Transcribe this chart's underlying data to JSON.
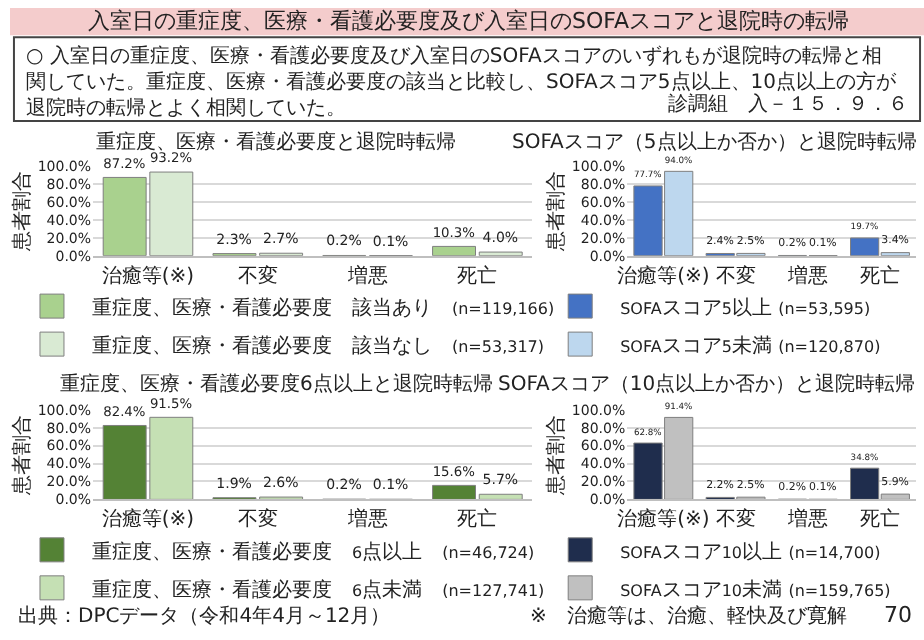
{
  "chart_data": [
    {
      "type": "bar",
      "title": "重症度、医療・看護必要度と退院時転帰",
      "ylabel": "患者割合",
      "categories": [
        "治癒等(※)",
        "不変",
        "増悪",
        "死亡"
      ],
      "ylim": [
        0,
        100
      ],
      "yticks": [
        {
          "value": 0,
          "label": "0.0%"
        },
        {
          "value": 20,
          "label": "20.0%"
        },
        {
          "value": 40,
          "label": "40.0%"
        },
        {
          "value": 60,
          "label": "60.0%"
        },
        {
          "value": 80,
          "label": "80.0%"
        },
        {
          "value": 100,
          "label": "100.0%"
        }
      ],
      "grid": "y",
      "legend": "bottom",
      "series": [
        {
          "name": "重症度、医療・看護必要度　該当あり　(n=119,166)",
          "color": "#a9d18e",
          "values": [
            87.2,
            2.3,
            0.2,
            10.3
          ],
          "value_labels": [
            "87.2%",
            "2.3%",
            "0.2%",
            "10.3%"
          ]
        },
        {
          "name": "重症度、医療・看護必要度　該当なし　(n=53,317)",
          "color": "#d9ead3",
          "values": [
            93.2,
            2.7,
            0.1,
            4.0
          ],
          "value_labels": [
            "93.2%",
            "2.7%",
            "0.1%",
            "4.0%"
          ]
        }
      ],
      "annotations": [
        "入室日の重症度、医療・看護必要度及び入室日のSOFAスコアと退院時の転帰",
        "○ 入室日の重症度、医療・看護必要度及び入室日のSOFAスコアのいずれもが退院時の転帰と相関していた。重症度、医療・看護必要度の該当と比較し、SOFAスコア5点以上、10点以上の方が退院時の転帰とよく相関していた。",
        "診調組　入－１５．９．６"
      ]
    },
    {
      "type": "bar",
      "title": "SOFAスコア（5点以上か否か）と退院時転帰",
      "ylabel": "患者割合",
      "categories": [
        "治癒等(※)",
        "不変",
        "増悪",
        "死亡"
      ],
      "ylim": [
        0,
        100
      ],
      "yticks": [
        {
          "value": 0,
          "label": "0.0%"
        },
        {
          "value": 20,
          "label": "20.0%"
        },
        {
          "value": 40,
          "label": "40.0%"
        },
        {
          "value": 60,
          "label": "60.0%"
        },
        {
          "value": 80,
          "label": "80.0%"
        },
        {
          "value": 100,
          "label": "100.0%"
        }
      ],
      "grid": "y",
      "legend": "bottom",
      "series": [
        {
          "name": "SOFAスコア5以上 (n=53,595)",
          "color": "#4472c4",
          "values": [
            77.7,
            2.4,
            0.2,
            19.7
          ],
          "value_labels": [
            "77.7%",
            "2.4%",
            "0.2%",
            "19.7%"
          ]
        },
        {
          "name": "SOFAスコア5未満 (n=120,870)",
          "color": "#bdd7ee",
          "values": [
            94.0,
            2.5,
            0.1,
            3.4
          ],
          "value_labels": [
            "94.0%",
            "2.5%",
            "0.1%",
            "3.4%"
          ]
        }
      ]
    },
    {
      "type": "bar",
      "title": "重症度、医療・看護必要度6点以上と退院時転帰",
      "ylabel": "患者割合",
      "categories": [
        "治癒等(※)",
        "不変",
        "増悪",
        "死亡"
      ],
      "ylim": [
        0,
        100
      ],
      "yticks": [
        {
          "value": 0,
          "label": "0.0%"
        },
        {
          "value": 20,
          "label": "20.0%"
        },
        {
          "value": 40,
          "label": "40.0%"
        },
        {
          "value": 60,
          "label": "60.0%"
        },
        {
          "value": 80,
          "label": "80.0%"
        },
        {
          "value": 100,
          "label": "100.0%"
        }
      ],
      "grid": "y",
      "legend": "bottom",
      "series": [
        {
          "name": "重症度、医療・看護必要度　6点以上　(n=46,724)",
          "color": "#548235",
          "values": [
            82.4,
            1.9,
            0.2,
            15.6
          ],
          "value_labels": [
            "82.4%",
            "1.9%",
            "0.2%",
            "15.6%"
          ]
        },
        {
          "name": "重症度、医療・看護必要度　6点未満　(n=127,741)",
          "color": "#c5e0b4",
          "values": [
            91.5,
            2.6,
            0.1,
            5.7
          ],
          "value_labels": [
            "91.5%",
            "2.6%",
            "0.1%",
            "5.7%"
          ]
        }
      ],
      "annotations": [
        "出典：DPCデータ（令和4年4月～12月）"
      ]
    },
    {
      "type": "bar",
      "title": "SOFAスコア（10点以上か否か）と退院時転帰",
      "ylabel": "患者割合",
      "categories": [
        "治癒等(※)",
        "不変",
        "増悪",
        "死亡"
      ],
      "ylim": [
        0,
        100
      ],
      "yticks": [
        {
          "value": 0,
          "label": "0.0%"
        },
        {
          "value": 20,
          "label": "20.0%"
        },
        {
          "value": 40,
          "label": "40.0%"
        },
        {
          "value": 60,
          "label": "60.0%"
        },
        {
          "value": 80,
          "label": "80.0%"
        },
        {
          "value": 100,
          "label": "100.0%"
        }
      ],
      "grid": "y",
      "legend": "bottom",
      "series": [
        {
          "name": "SOFAスコア10以上 (n=14,700)",
          "color": "#1f2d4d",
          "values": [
            62.8,
            2.2,
            0.2,
            34.8
          ],
          "value_labels": [
            "62.8%",
            "2.2%",
            "0.2%",
            "34.8%"
          ]
        },
        {
          "name": "SOFAスコア10未満 (n=159,765)",
          "color": "#c0c0c0",
          "values": [
            91.4,
            2.5,
            0.1,
            5.9
          ],
          "value_labels": [
            "91.4%",
            "2.5%",
            "0.1%",
            "5.9%"
          ]
        }
      ],
      "annotations": [
        "※　治癒等は、治癒、軽快及び寛解",
        "70"
      ]
    }
  ]
}
